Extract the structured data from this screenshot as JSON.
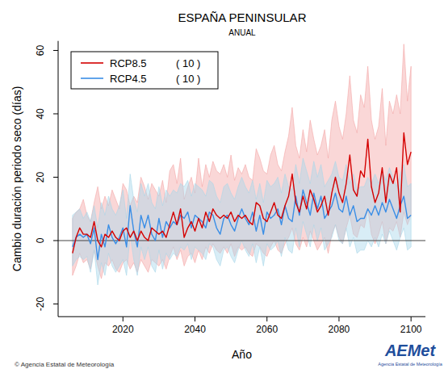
{
  "chart_data": {
    "type": "line",
    "title": "ESPAÑA PENINSULAR",
    "subtitle": "ANUAL",
    "x_label": "Año",
    "y_label": "Cambio duración periodo seco (días)",
    "source": "© Agencia Estatal de Meteorología",
    "logo": "AEMet",
    "logo_subtitle": "Agencia Estatal de Meteorología",
    "legend": "top-left",
    "reference_lines": [
      0
    ],
    "xlim": [
      2002,
      2104
    ],
    "xticks": [
      2020,
      2040,
      2060,
      2080,
      2100
    ],
    "ylim": [
      -24,
      63
    ],
    "yticks": [
      -20,
      0,
      20,
      40,
      60
    ],
    "x": [
      2006,
      2007,
      2008,
      2009,
      2010,
      2011,
      2012,
      2013,
      2014,
      2015,
      2016,
      2017,
      2018,
      2019,
      2020,
      2021,
      2022,
      2023,
      2024,
      2025,
      2026,
      2027,
      2028,
      2029,
      2030,
      2031,
      2032,
      2033,
      2034,
      2035,
      2036,
      2037,
      2038,
      2039,
      2040,
      2041,
      2042,
      2043,
      2044,
      2045,
      2046,
      2047,
      2048,
      2049,
      2050,
      2051,
      2052,
      2053,
      2054,
      2055,
      2056,
      2057,
      2058,
      2059,
      2060,
      2061,
      2062,
      2063,
      2064,
      2065,
      2066,
      2067,
      2068,
      2069,
      2070,
      2071,
      2072,
      2073,
      2074,
      2075,
      2076,
      2077,
      2078,
      2079,
      2080,
      2081,
      2082,
      2083,
      2084,
      2085,
      2086,
      2087,
      2088,
      2089,
      2090,
      2091,
      2092,
      2093,
      2094,
      2095,
      2096,
      2097,
      2098,
      2099,
      2100
    ],
    "series": [
      {
        "name": "RCP8.5",
        "legend_note": "( 10 )",
        "color": "#d40000",
        "band_color": "#f4a6a6",
        "values": [
          -4,
          1,
          4,
          2,
          2,
          1,
          6,
          0,
          -2,
          2,
          1,
          3,
          1,
          0,
          3,
          4,
          1,
          3,
          0,
          3,
          1,
          0,
          4,
          3,
          2,
          3,
          1,
          5,
          9,
          5,
          10,
          1,
          4,
          6,
          3,
          7,
          4,
          9,
          6,
          10,
          8,
          7,
          8,
          7,
          9,
          6,
          8,
          7,
          8,
          6,
          5,
          12,
          11,
          7,
          6,
          9,
          12,
          8,
          7,
          11,
          14,
          21,
          12,
          9,
          14,
          10,
          16,
          13,
          9,
          11,
          14,
          8,
          15,
          20,
          15,
          12,
          18,
          27,
          16,
          14,
          22,
          20,
          32,
          17,
          12,
          15,
          23,
          12,
          21,
          18,
          23,
          9,
          34,
          24,
          28
        ],
        "upper": [
          7,
          9,
          10,
          13,
          8,
          6,
          12,
          17,
          10,
          14,
          11,
          16,
          13,
          10,
          18,
          16,
          11,
          14,
          12,
          20,
          17,
          13,
          18,
          16,
          14,
          19,
          12,
          22,
          24,
          18,
          26,
          13,
          17,
          20,
          15,
          26,
          17,
          24,
          20,
          25,
          22,
          21,
          24,
          20,
          27,
          19,
          23,
          21,
          24,
          20,
          19,
          29,
          26,
          22,
          21,
          27,
          30,
          24,
          22,
          28,
          33,
          42,
          30,
          26,
          35,
          28,
          38,
          32,
          27,
          30,
          35,
          26,
          38,
          44,
          36,
          32,
          40,
          52,
          38,
          34,
          46,
          42,
          55,
          38,
          32,
          36,
          48,
          30,
          44,
          40,
          46,
          40,
          62,
          44,
          55
        ],
        "lower": [
          -11,
          -8,
          -4,
          -7,
          -6,
          -9,
          -3,
          -8,
          -12,
          -7,
          -8,
          -6,
          -9,
          -10,
          -7,
          -6,
          -9,
          -7,
          -10,
          -6,
          -8,
          -10,
          -6,
          -7,
          -8,
          -6,
          -9,
          -5,
          -2,
          -6,
          -3,
          -8,
          -5,
          -4,
          -7,
          -3,
          -6,
          -2,
          -4,
          -1,
          -3,
          -4,
          -2,
          -4,
          -1,
          -5,
          -2,
          -3,
          -2,
          -4,
          -5,
          -1,
          -2,
          -4,
          -5,
          -2,
          0,
          -3,
          -4,
          -1,
          1,
          4,
          -1,
          -3,
          1,
          -2,
          3,
          0,
          -3,
          -1,
          1,
          -4,
          2,
          5,
          1,
          -1,
          4,
          8,
          2,
          1,
          5,
          4,
          10,
          2,
          -1,
          2,
          6,
          -1,
          4,
          3,
          6,
          1,
          9,
          5,
          8
        ]
      },
      {
        "name": "RCP4.5",
        "legend_note": "( 10 )",
        "color": "#3a8ee6",
        "band_color": "#a9d6ea",
        "values": [
          -2,
          1,
          2,
          1,
          2,
          -1,
          4,
          -6,
          2,
          -2,
          5,
          1,
          -1,
          1,
          4,
          -2,
          11,
          3,
          -2,
          8,
          4,
          8,
          2,
          0,
          7,
          1,
          6,
          4,
          6,
          5,
          8,
          7,
          9,
          4,
          8,
          7,
          6,
          4,
          9,
          8,
          4,
          2,
          7,
          8,
          5,
          3,
          7,
          10,
          7,
          5,
          9,
          3,
          8,
          2,
          9,
          7,
          8,
          10,
          5,
          11,
          7,
          6,
          14,
          8,
          16,
          12,
          8,
          15,
          10,
          14,
          7,
          9,
          11,
          15,
          10,
          9,
          14,
          8,
          11,
          6,
          7,
          7,
          10,
          8,
          11,
          8,
          12,
          9,
          13,
          10,
          7,
          11,
          14,
          7,
          8
        ],
        "upper": [
          8,
          9,
          10,
          7,
          9,
          6,
          11,
          4,
          12,
          8,
          14,
          10,
          8,
          11,
          16,
          7,
          21,
          13,
          9,
          18,
          14,
          18,
          12,
          10,
          17,
          11,
          16,
          14,
          16,
          15,
          18,
          17,
          19,
          14,
          18,
          17,
          16,
          14,
          19,
          18,
          14,
          12,
          17,
          18,
          15,
          13,
          17,
          20,
          17,
          15,
          19,
          13,
          18,
          12,
          19,
          17,
          18,
          20,
          15,
          21,
          17,
          16,
          24,
          18,
          26,
          22,
          18,
          25,
          20,
          24,
          17,
          19,
          21,
          25,
          20,
          19,
          24,
          18,
          21,
          16,
          17,
          17,
          20,
          18,
          21,
          18,
          22,
          19,
          23,
          20,
          17,
          21,
          24,
          17,
          18
        ],
        "lower": [
          -8,
          -6,
          -5,
          -6,
          -5,
          -10,
          -3,
          -14,
          -7,
          -11,
          -4,
          -8,
          -10,
          -8,
          -6,
          -11,
          2,
          -6,
          -11,
          -2,
          -6,
          -2,
          -8,
          -10,
          -3,
          -9,
          -4,
          -6,
          -4,
          -5,
          -2,
          -3,
          -1,
          -6,
          -2,
          -3,
          -4,
          -6,
          -1,
          -2,
          -6,
          -8,
          -3,
          -2,
          -5,
          -7,
          -3,
          0,
          -3,
          -5,
          -1,
          -7,
          -2,
          -8,
          -1,
          -3,
          -2,
          0,
          -5,
          1,
          -3,
          -4,
          4,
          -2,
          6,
          2,
          -2,
          5,
          0,
          4,
          -3,
          -1,
          1,
          5,
          0,
          -1,
          4,
          -2,
          1,
          -4,
          -3,
          -3,
          0,
          -2,
          1,
          -2,
          2,
          -1,
          3,
          0,
          -3,
          1,
          4,
          -3,
          -2
        ]
      }
    ]
  }
}
